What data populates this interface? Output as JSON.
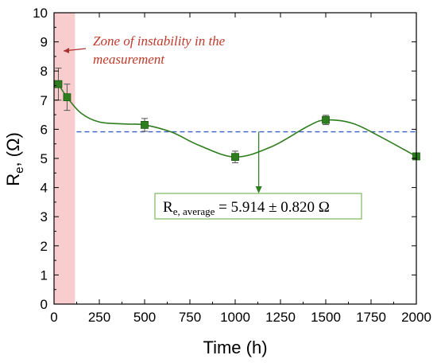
{
  "chart_data": {
    "type": "line",
    "xlabel": "Time (h)",
    "ylabel_main": "R",
    "ylabel_sub": "e",
    "ylabel_rest": ", (Ω)",
    "xlim": [
      0,
      2000
    ],
    "ylim": [
      0,
      10
    ],
    "xticks": [
      0,
      250,
      500,
      750,
      1000,
      1250,
      1500,
      1750,
      2000
    ],
    "yticks": [
      0,
      1,
      2,
      3,
      4,
      5,
      6,
      7,
      8,
      9,
      10
    ],
    "grid": false,
    "series": [
      {
        "marker": "square",
        "color": "#2e7d1e",
        "x": [
          24,
          72,
          500,
          1000,
          1500,
          2000
        ],
        "y": [
          7.55,
          7.1,
          6.15,
          5.05,
          6.32,
          5.07
        ],
        "err": [
          0.55,
          0.45,
          0.22,
          0.2,
          0.16,
          0.1
        ]
      }
    ],
    "fit_curve": {
      "x": [
        24,
        72,
        150,
        250,
        400,
        500,
        650,
        800,
        1000,
        1200,
        1400,
        1500,
        1650,
        1800,
        2000
      ],
      "y": [
        7.55,
        7.1,
        6.55,
        6.25,
        6.18,
        6.15,
        5.9,
        5.45,
        5.05,
        5.4,
        6.1,
        6.32,
        6.2,
        5.75,
        5.07
      ]
    },
    "average": {
      "value": 5.914,
      "color": "#3a5fc4",
      "arrow_x": 1130,
      "label_main": "R",
      "label_sub": "e, average",
      "label_rest": " = 5.914 ± 0.820 Ω"
    },
    "instability_zone": {
      "x_range": [
        0,
        72
      ],
      "color": "#f8c8c8",
      "label_line1": "Zone of instability in the",
      "label_line2": "measurement",
      "arrow_color": "#a83232"
    }
  }
}
